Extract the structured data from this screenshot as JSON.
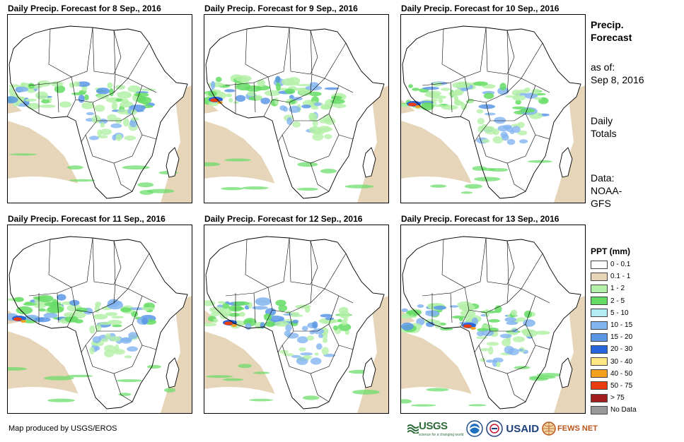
{
  "panels": [
    {
      "title": "Daily Precip. Forecast for 8 Sep., 2016",
      "variant": 0
    },
    {
      "title": "Daily Precip. Forecast for 9 Sep., 2016",
      "variant": 1
    },
    {
      "title": "Daily Precip. Forecast for 10 Sep., 2016",
      "variant": 2
    },
    {
      "title": "Daily Precip. Forecast for 11 Sep., 2016",
      "variant": 3
    },
    {
      "title": "Daily Precip. Forecast for 12 Sep., 2016",
      "variant": 4
    },
    {
      "title": "Daily Precip. Forecast for 13 Sep., 2016",
      "variant": 5
    }
  ],
  "side": {
    "heading_line1": "Precip.",
    "heading_line2": "Forecast",
    "asof_label": "as of:",
    "asof_date": "Sep 8, 2016",
    "totals_line1": "Daily",
    "totals_line2": "Totals",
    "data_label": "Data:",
    "data_source_line1": "NOAA-",
    "data_source_line2": "GFS"
  },
  "legend": {
    "title": "PPT (mm)",
    "items": [
      {
        "label": "0 - 0.1",
        "color": "#ffffff"
      },
      {
        "label": "0.1 - 1",
        "color": "#e6d5b8"
      },
      {
        "label": "1 - 2",
        "color": "#b4f0a8"
      },
      {
        "label": "2 - 5",
        "color": "#64dc64"
      },
      {
        "label": "5 - 10",
        "color": "#b4ecf5"
      },
      {
        "label": "10 - 15",
        "color": "#82b4f0"
      },
      {
        "label": "15 - 20",
        "color": "#5a96e6"
      },
      {
        "label": "20 - 30",
        "color": "#2864dc"
      },
      {
        "label": "30 - 40",
        "color": "#ffe682"
      },
      {
        "label": "40 - 50",
        "color": "#f5a01e"
      },
      {
        "label": "50 - 75",
        "color": "#eb3c0f"
      },
      {
        "label": "> 75",
        "color": "#a01e1e"
      },
      {
        "label": "No Data",
        "color": "#999999"
      }
    ]
  },
  "credit": "Map produced by USGS/EROS",
  "logos": {
    "usgs": "USGS",
    "usgs_tagline": "science for a changing world",
    "usaid": "USAID",
    "fews": "FEWS NET"
  }
}
